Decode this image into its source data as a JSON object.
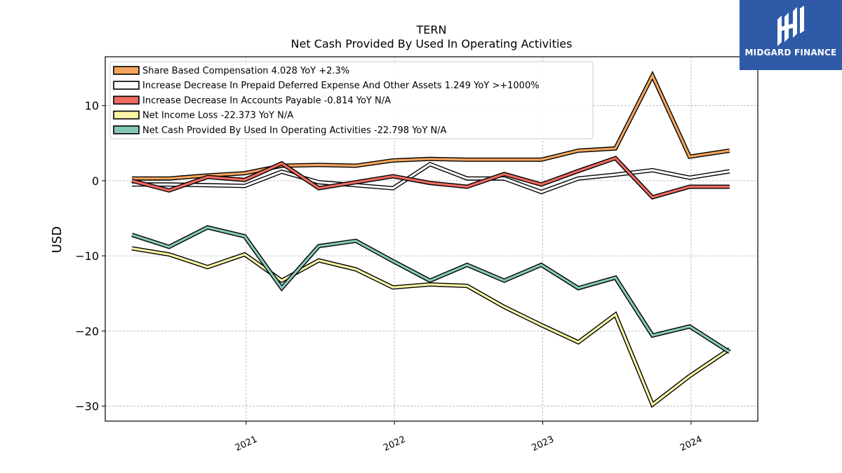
{
  "chart_data": {
    "type": "line",
    "title": "TERN",
    "subtitle": "Net Cash Provided By Used In Operating Activities",
    "ylabel": "USD",
    "xlabel": "",
    "ylim": [
      -32,
      16.5
    ],
    "xlim": [
      2020.05,
      2024.45
    ],
    "yticks": [
      10,
      0,
      -10,
      -20,
      -30
    ],
    "ytick_labels": [
      "10",
      "0",
      "−10",
      "−20",
      "−30"
    ],
    "xticks": [
      2021,
      2022,
      2023,
      2024
    ],
    "xtick_labels": [
      "2021",
      "2022",
      "2023",
      "2024"
    ],
    "grid": true,
    "legend_position": "top-left",
    "x": [
      2020.23,
      2020.48,
      2020.74,
      2020.99,
      2021.24,
      2021.49,
      2021.74,
      2021.99,
      2022.24,
      2022.49,
      2022.74,
      2022.99,
      2023.24,
      2023.49,
      2023.74,
      2023.99,
      2024.26
    ],
    "series": [
      {
        "name": "Share Based Compensation  4.028 YoY +2.3%",
        "color": "#f5a55c",
        "values": [
          0.3,
          0.3,
          0.7,
          1.0,
          2.0,
          2.1,
          2.0,
          2.7,
          2.9,
          2.8,
          2.8,
          2.8,
          4.0,
          4.3,
          14.0,
          3.2,
          4.0
        ]
      },
      {
        "name": "Increase Decrease In Prepaid Deferred Expense And Other Assets  1.249 YoY >+1000%",
        "color": "#ffffff",
        "values": [
          -0.5,
          -0.5,
          -0.6,
          -0.7,
          1.2,
          -0.2,
          -0.6,
          -1.0,
          2.2,
          0.3,
          0.3,
          -1.5,
          0.3,
          0.8,
          1.4,
          0.4,
          1.25
        ]
      },
      {
        "name": "Increase Decrease In Accounts Payable  -0.814 YoY N/A",
        "color": "#f06a60",
        "values": [
          0.0,
          -1.3,
          0.5,
          0.1,
          2.3,
          -1.0,
          -0.2,
          0.6,
          -0.3,
          -0.8,
          0.9,
          -0.5,
          1.3,
          3.0,
          -2.2,
          -0.8,
          -0.8
        ]
      },
      {
        "name": "Net Income Loss  -22.373 YoY N/A",
        "color": "#fbf5a8",
        "values": [
          -9.0,
          -9.8,
          -11.5,
          -9.8,
          -13.3,
          -10.6,
          -11.8,
          -14.2,
          -13.8,
          -14.0,
          -16.8,
          -19.2,
          -21.5,
          -17.8,
          -29.8,
          -26.0,
          -22.4
        ]
      },
      {
        "name": "Net Cash Provided By Used In Operating Activities  -22.798 YoY N/A",
        "color": "#86c9b9",
        "values": [
          -7.2,
          -8.8,
          -6.2,
          -7.4,
          -14.3,
          -8.7,
          -8.0,
          -10.7,
          -13.3,
          -11.2,
          -13.3,
          -11.2,
          -14.3,
          -12.9,
          -20.6,
          -19.4,
          -22.8
        ]
      }
    ]
  },
  "logo": {
    "text": "MIDGARD FINANCE",
    "bg_color": "#2f5aa8"
  }
}
